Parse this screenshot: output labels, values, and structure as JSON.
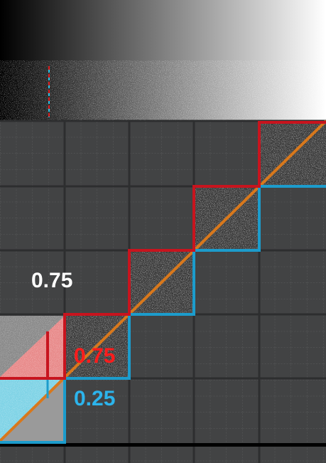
{
  "labels": {
    "white_value": "0.75",
    "red_value": "0.75",
    "cyan_value": "0.25"
  },
  "colors": {
    "background": "#424344",
    "grid_major": "#2d2e2f",
    "grid_minor": "#5a5b5c",
    "red": "#c8141e",
    "cyan": "#1c9ccc",
    "orange": "#d8781c",
    "white_label": "#ffffff",
    "red_label": "#ff1c1c",
    "cyan_label": "#2cb4ec"
  },
  "diagram": {
    "gradient_from": "#000000",
    "gradient_to": "#ffffff",
    "steps": 4,
    "description_tags": [
      "gradient-bar",
      "dithered-bar",
      "staircase-red",
      "staircase-cyan",
      "diagonal-orange"
    ]
  }
}
